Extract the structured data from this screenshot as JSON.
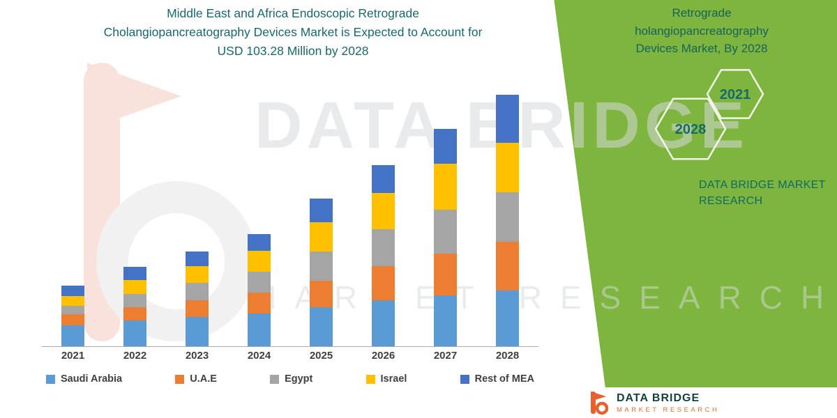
{
  "title": {
    "line1": "Middle East and Africa Endoscopic Retrograde",
    "line2": "Cholangiopancreatography Devices Market is Expected to Account for",
    "line3": "USD 103.28 Million by 2028"
  },
  "colors": {
    "teal": "#17696F",
    "panel_green": "#7DB53E",
    "axis_line": "#ABABAB",
    "label_text": "#3F3F3F",
    "watermark_gray": "#D7D9DB",
    "logo_orange": "#E8612C"
  },
  "chart_data": {
    "type": "bar",
    "stacked": true,
    "title": "Middle East and Africa Endoscopic Retrograde Cholangiopancreatography Devices Market is Expected to Account for USD 103.28 Million by 2028",
    "xlabel": "",
    "ylabel": "",
    "ylim": [
      0,
      112
    ],
    "grid": false,
    "legend_position": "bottom",
    "categories": [
      "2021",
      "2022",
      "2023",
      "2024",
      "2025",
      "2026",
      "2027",
      "2028"
    ],
    "series": [
      {
        "name": "Saudi Arabia",
        "color": "#5B9BD5",
        "values": [
          8.5,
          10.5,
          12.0,
          13.5,
          16.0,
          19.0,
          21.0,
          22.8
        ]
      },
      {
        "name": "U.A.E",
        "color": "#ED7D31",
        "values": [
          4.5,
          5.5,
          7.0,
          8.5,
          11.0,
          14.0,
          17.0,
          20.0
        ]
      },
      {
        "name": "Egypt",
        "color": "#A5A5A5",
        "values": [
          3.5,
          5.5,
          7.0,
          8.5,
          12.0,
          15.0,
          18.0,
          20.3
        ]
      },
      {
        "name": "Israel",
        "color": "#FFC000",
        "values": [
          4.0,
          5.5,
          7.0,
          8.5,
          12.0,
          15.0,
          19.0,
          20.3
        ]
      },
      {
        "name": "Rest of MEA",
        "color": "#4472C4",
        "values": [
          4.3,
          5.5,
          6.0,
          7.0,
          9.5,
          11.4,
          14.2,
          19.88
        ]
      }
    ],
    "totals_estimated_usd_million": [
      24.8,
      32.5,
      39.0,
      46.0,
      60.5,
      74.4,
      89.2,
      103.28
    ]
  },
  "side_panel": {
    "heading_lines": [
      "Retrograde",
      "holangiopancreatography",
      "Devices Market, By 2028"
    ],
    "hex_years": [
      "2021",
      "2028"
    ],
    "brand_line1": "DATA BRIDGE MARKET",
    "brand_line2": "RESEARCH"
  },
  "watermark": {
    "line1": "DATA BRIDGE",
    "line2": "MARKET RESEARCH"
  },
  "footer": {
    "brand": "DATA BRIDGE",
    "sub": "MARKET RESEARCH"
  }
}
